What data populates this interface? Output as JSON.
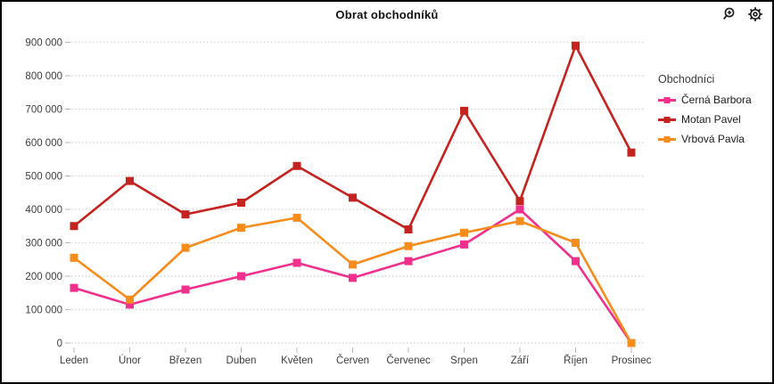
{
  "window": {
    "background": "#ffffff",
    "border_color": "#000000",
    "text_color": "#3d3d3d",
    "gridline_color": "#d6d6d6",
    "tick_color": "#b8b8b8"
  },
  "toolbar": {
    "zoom_in_icon": "magnifier-plus",
    "settings_icon": "gear"
  },
  "legend": {
    "title": "Obchodníci",
    "position": "right"
  },
  "chart_data": {
    "type": "line",
    "title": "Obrat obchodníků",
    "categories": [
      "Leden",
      "Únor",
      "Březen",
      "Duben",
      "Květen",
      "Červen",
      "Červenec",
      "Srpen",
      "Září",
      "Říjen",
      "Prosinec"
    ],
    "series": [
      {
        "name": "Černá Barbora",
        "color": "#f0308c",
        "values": [
          165000,
          115000,
          160000,
          200000,
          240000,
          195000,
          245000,
          295000,
          400000,
          245000,
          0
        ]
      },
      {
        "name": "Motan Pavel",
        "color": "#c4231f",
        "values": [
          350000,
          485000,
          385000,
          420000,
          530000,
          435000,
          340000,
          695000,
          425000,
          890000,
          570000
        ]
      },
      {
        "name": "Vrbová Pavla",
        "color": "#f68c1c",
        "values": [
          255000,
          130000,
          285000,
          345000,
          375000,
          235000,
          290000,
          330000,
          365000,
          300000,
          0
        ]
      }
    ],
    "xlabel": "",
    "ylabel": "",
    "ylim": [
      0,
      900000
    ],
    "y_tick_step": 100000,
    "y_tick_labels": [
      "0",
      "100 000",
      "200 000",
      "300 000",
      "400 000",
      "500 000",
      "600 000",
      "700 000",
      "800 000",
      "900 000"
    ],
    "grid": "horizontal-dotted",
    "marker": "square",
    "legend_position": "right"
  }
}
